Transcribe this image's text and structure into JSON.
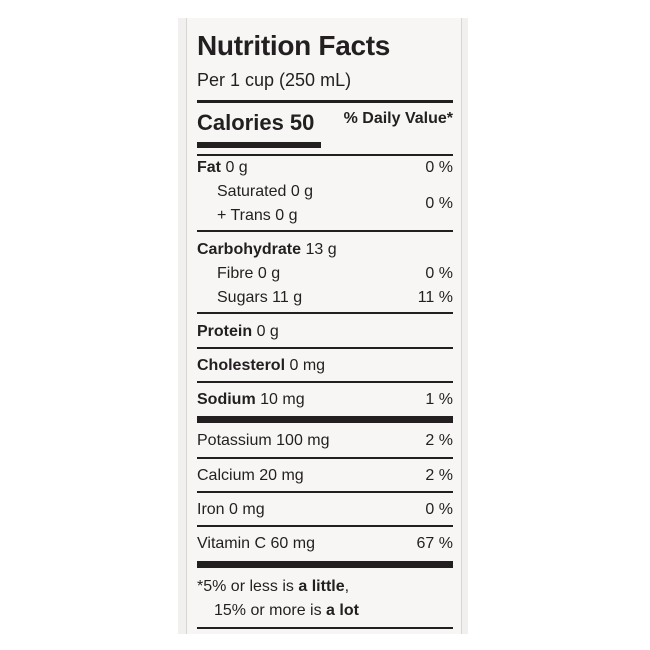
{
  "title": "Nutrition Facts",
  "serving": "Per 1 cup (250 mL)",
  "calories": "Calories 50",
  "dv_header": "% Daily Value*",
  "rows": {
    "fat": {
      "label": "Fat",
      "amount": "0 g",
      "dv": "0 %"
    },
    "saturated": {
      "label": "Saturated 0 g"
    },
    "trans": {
      "label": "+ Trans 0 g",
      "dv": "0 %"
    },
    "carbohydrate": {
      "label": "Carbohydrate",
      "amount": "13 g"
    },
    "fibre": {
      "label": "Fibre 0 g",
      "dv": "0 %"
    },
    "sugars": {
      "label": "Sugars 11 g",
      "dv": "11 %"
    },
    "protein": {
      "label": "Protein",
      "amount": "0 g"
    },
    "cholesterol": {
      "label": "Cholesterol",
      "amount": "0 mg"
    },
    "sodium": {
      "label": "Sodium",
      "amount": "10 mg",
      "dv": "1 %"
    },
    "potassium": {
      "label": "Potassium 100 mg",
      "dv": "2 %"
    },
    "calcium": {
      "label": "Calcium 20 mg",
      "dv": "2 %"
    },
    "iron": {
      "label": "Iron 0 mg",
      "dv": "0 %"
    },
    "vitamin_c": {
      "label": "Vitamin C 60 mg",
      "dv": "67 %"
    }
  },
  "footnote": {
    "line1_pre": "*5% or less is ",
    "line1_bold": "a little",
    "line1_post": ",",
    "line2_pre": "15% or more is ",
    "line2_bold": "a lot"
  }
}
